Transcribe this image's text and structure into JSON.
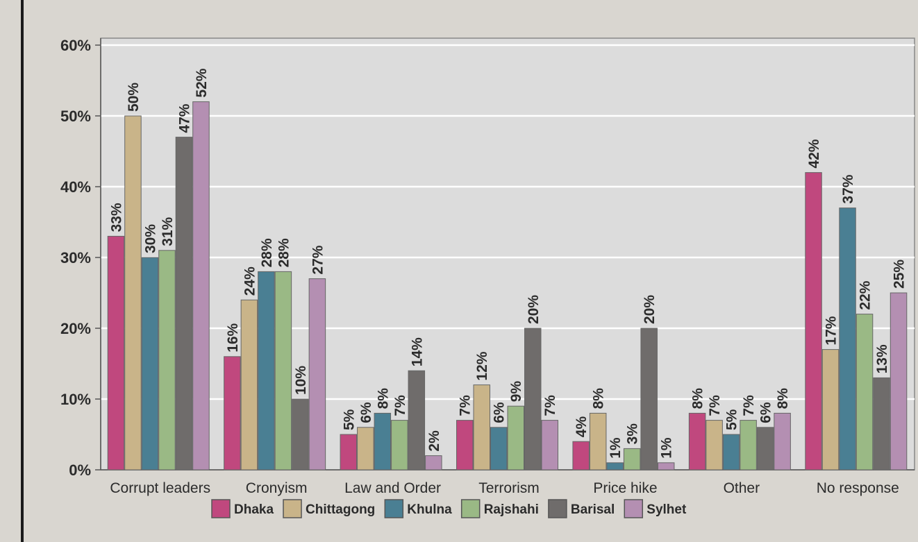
{
  "chart_data": {
    "type": "bar",
    "categories": [
      "Corrupt leaders",
      "Cronyism",
      "Law and Order",
      "Terrorism",
      "Price hike",
      "Other",
      "No response"
    ],
    "series": [
      {
        "name": "Dhaka",
        "color": "#c0487e",
        "values": [
          33,
          16,
          5,
          7,
          4,
          8,
          42
        ],
        "labels": [
          "33%",
          "16%",
          "5%",
          "7%",
          "4%",
          "8%",
          "42%"
        ]
      },
      {
        "name": "Chittagong",
        "color": "#c9b489",
        "values": [
          50,
          24,
          6,
          12,
          8,
          7,
          17
        ],
        "labels": [
          "50%",
          "24%",
          "6%",
          "12%",
          "8%",
          "7%",
          "17%"
        ]
      },
      {
        "name": "Khulna",
        "color": "#4a7f93",
        "values": [
          30,
          28,
          8,
          6,
          1,
          5,
          37
        ],
        "labels": [
          "30%",
          "28%",
          "8%",
          "6%",
          "1%",
          "5%",
          "37%"
        ]
      },
      {
        "name": "Rajshahi",
        "color": "#9ab985",
        "values": [
          31,
          28,
          7,
          9,
          3,
          7,
          22
        ],
        "labels": [
          "31%",
          "28%",
          "7%",
          "9%",
          "3%",
          "7%",
          "22%"
        ]
      },
      {
        "name": "Barisal",
        "color": "#6f6c6b",
        "values": [
          47,
          10,
          14,
          20,
          20,
          6,
          13
        ],
        "labels": [
          "47%",
          "10%",
          "14%",
          "20%",
          "20%",
          "6%",
          "13%"
        ]
      },
      {
        "name": "Sylhet",
        "color": "#b48fb2",
        "values": [
          52,
          27,
          2,
          7,
          1,
          8,
          25
        ],
        "labels": [
          "52%",
          "27%",
          "2%",
          "7%",
          "1%",
          "8%",
          "25%"
        ]
      }
    ],
    "ylim": [
      0,
      60
    ],
    "yticks": [
      "0%",
      "10%",
      "20%",
      "30%",
      "40%",
      "50%",
      "60%"
    ],
    "grid": true,
    "legend_position": "bottom"
  }
}
